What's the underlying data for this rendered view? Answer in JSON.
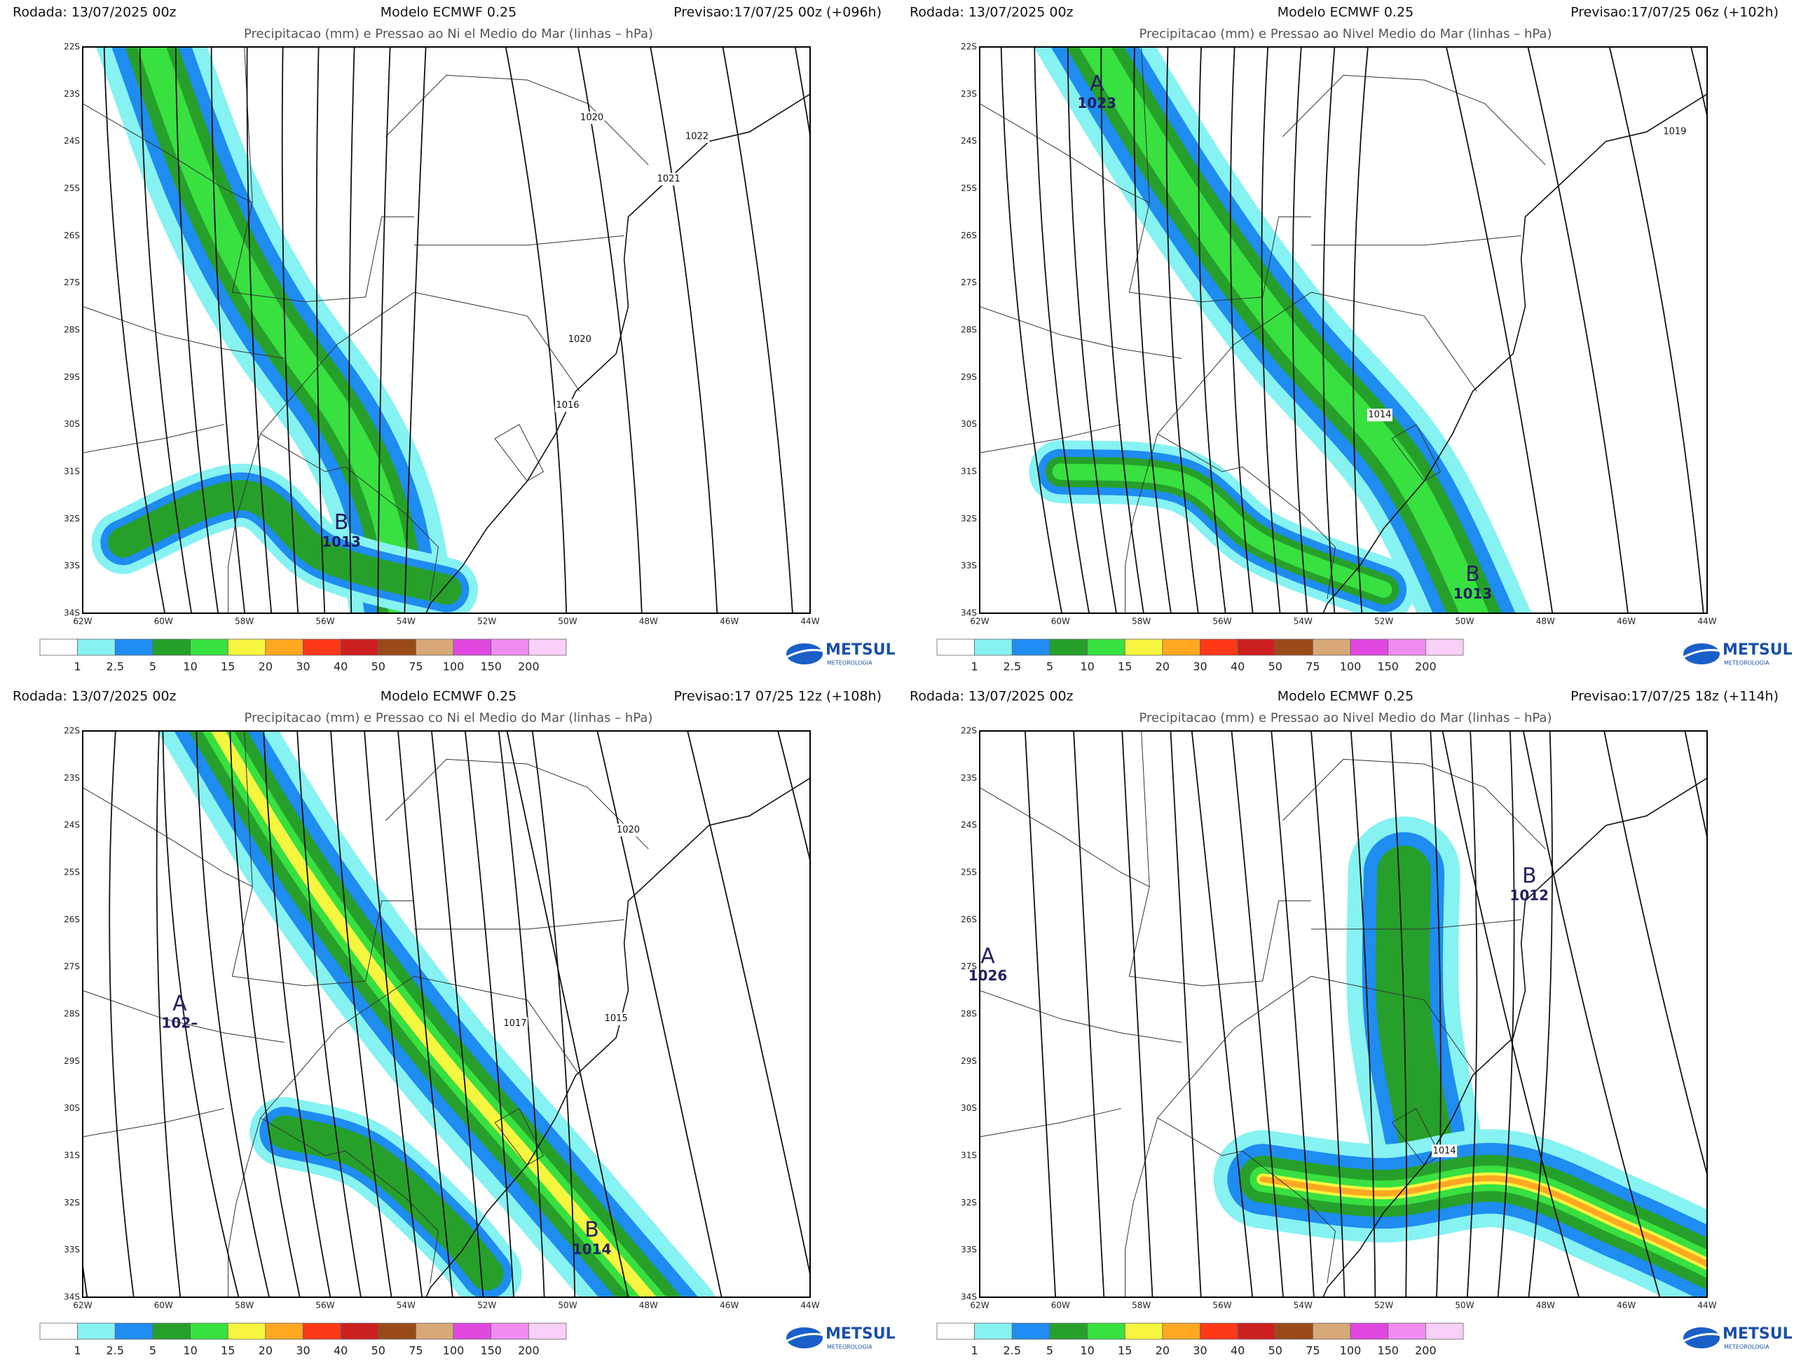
{
  "panels": [
    {
      "header": {
        "rodada": "Rodada: 13/07/2025 00z",
        "modelo": "Modelo ECMWF 0.25",
        "previsao": "Previsao:17/07/25 00z (+096h)"
      },
      "subtitle": "Precipitacao (mm) e Pressao ao Ni el Medio do Mar (linhas – hPa)",
      "pressure_systems": [
        {
          "letter": "B",
          "value": "1013"
        }
      ],
      "isobar_labels": [
        "1020",
        "1022",
        "1021",
        "1020",
        "1016"
      ]
    },
    {
      "header": {
        "rodada": "Rodada: 13/07/2025 00z",
        "modelo": "Modelo ECMWF 0.25",
        "previsao": "Previsao:17/07/25 06z (+102h)"
      },
      "subtitle": "Precipitacao (mm) e Pressao ao Nivel Medio do Mar (linhas – hPa)",
      "pressure_systems": [
        {
          "letter": "A",
          "value": "1023"
        },
        {
          "letter": "B",
          "value": "1013"
        }
      ],
      "isobar_labels": [
        "1014",
        "1019"
      ]
    },
    {
      "header": {
        "rodada": "Rodada: 13/07/2025 00z",
        "modelo": "Modelo ECMWF 0.25",
        "previsao": "Previsao:17 07/25 12z (+108h)"
      },
      "subtitle": "Precipitacao (mm) e Pressao co Ni el Medio do Mar (linhas – hPa)",
      "pressure_systems": [
        {
          "letter": "A",
          "value": "102–"
        },
        {
          "letter": "B",
          "value": "1014"
        }
      ],
      "isobar_labels": [
        "1020",
        "1017",
        "1015"
      ]
    },
    {
      "header": {
        "rodada": "Rodada: 13/07/2025 00z",
        "modelo": "Modelo ECMWF 0.25",
        "previsao": "Previsao:17/07/25 18z (+114h)"
      },
      "subtitle": "Precipitacao (mm) e Pressao ao Nivel Medio do Mar (linhas – hPa)",
      "pressure_systems": [
        {
          "letter": "A",
          "value": "1026"
        },
        {
          "letter": "B",
          "value": "1012"
        }
      ],
      "isobar_labels": [
        "1014"
      ]
    }
  ],
  "axes": {
    "lat_labels": [
      "22S",
      "23S",
      "24S",
      "25S",
      "26S",
      "27S",
      "28S",
      "29S",
      "30S",
      "31S",
      "32S",
      "33S",
      "34S"
    ],
    "lon_labels": [
      "62W",
      "60W",
      "58W",
      "56W",
      "54W",
      "52W",
      "50W",
      "48W",
      "46W",
      "44W"
    ]
  },
  "legend_labels": [
    "1",
    "2.5",
    "5",
    "10",
    "15",
    "20",
    "30",
    "40",
    "50",
    "75",
    "100",
    "150",
    "200"
  ],
  "logo": {
    "name": "METSUL",
    "sub": "METEOROLOGIA"
  }
}
